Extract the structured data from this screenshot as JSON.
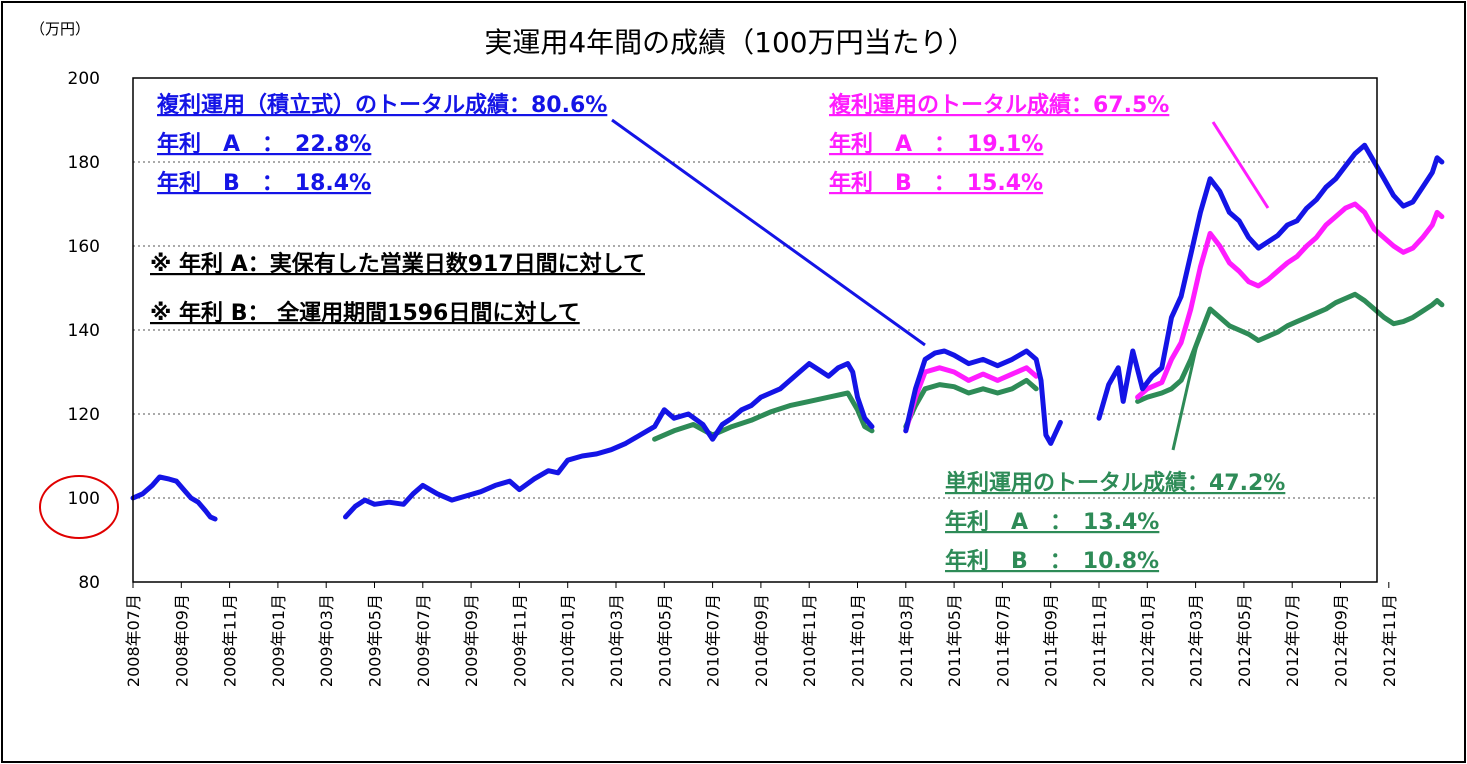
{
  "chart_data": {
    "type": "line",
    "title": "実運用4年間の成績（100万円当たり）",
    "y_unit_label": "（万円）",
    "ylim": [
      80,
      200
    ],
    "yticks": [
      80,
      100,
      120,
      140,
      160,
      180,
      200
    ],
    "x_tick_labels": [
      "2008年07月",
      "2008年09月",
      "2008年11月",
      "2009年01月",
      "2009年03月",
      "2009年05月",
      "2009年07月",
      "2009年09月",
      "2009年11月",
      "2010年01月",
      "2010年03月",
      "2010年05月",
      "2010年07月",
      "2010年09月",
      "2010年11月",
      "2011年01月",
      "2011年03月",
      "2011年05月",
      "2011年07月",
      "2011年09月",
      "2011年11月",
      "2012年01月",
      "2012年03月",
      "2012年05月",
      "2012年07月",
      "2012年09月",
      "2012年11月"
    ],
    "grid": "horizontal-dotted",
    "highlight_tick": 100,
    "series": [
      {
        "name": "複利運用（積立式）",
        "color": "#1414e6",
        "points": [
          [
            0,
            100
          ],
          [
            0.2,
            101
          ],
          [
            0.4,
            103
          ],
          [
            0.55,
            105
          ],
          [
            0.75,
            104.5
          ],
          [
            0.9,
            104
          ],
          [
            1.05,
            102
          ],
          [
            1.2,
            100
          ],
          [
            1.35,
            99
          ],
          [
            1.5,
            97
          ],
          [
            1.6,
            95.5
          ],
          [
            1.7,
            95
          ],
          null,
          [
            4.4,
            95.5
          ],
          [
            4.6,
            98
          ],
          [
            4.8,
            99.5
          ],
          [
            5.0,
            98.5
          ],
          [
            5.3,
            99
          ],
          [
            5.6,
            98.5
          ],
          [
            5.8,
            101
          ],
          [
            6.0,
            103
          ],
          [
            6.3,
            101
          ],
          [
            6.6,
            99.5
          ],
          [
            6.9,
            100.5
          ],
          [
            7.2,
            101.5
          ],
          [
            7.5,
            103
          ],
          [
            7.8,
            104
          ],
          [
            8.0,
            102
          ],
          [
            8.3,
            104.5
          ],
          [
            8.6,
            106.5
          ],
          [
            8.8,
            106
          ],
          [
            9.0,
            109
          ],
          [
            9.3,
            110
          ],
          [
            9.6,
            110.5
          ],
          [
            9.9,
            111.5
          ],
          [
            10.2,
            113
          ],
          [
            10.5,
            115
          ],
          [
            10.8,
            117
          ],
          [
            11.0,
            121
          ],
          [
            11.2,
            119
          ],
          [
            11.5,
            120
          ],
          [
            11.8,
            117.5
          ],
          [
            12.0,
            114
          ],
          [
            12.2,
            117.5
          ],
          [
            12.4,
            119
          ],
          [
            12.6,
            121
          ],
          [
            12.8,
            122
          ],
          [
            13.0,
            124
          ],
          [
            13.2,
            125
          ],
          [
            13.4,
            126
          ],
          [
            13.6,
            128
          ],
          [
            13.8,
            130
          ],
          [
            14.0,
            132
          ],
          [
            14.2,
            130.5
          ],
          [
            14.4,
            129
          ],
          [
            14.6,
            131
          ],
          [
            14.8,
            132
          ],
          [
            14.9,
            130
          ],
          [
            15.0,
            124
          ],
          [
            15.15,
            119
          ],
          [
            15.3,
            117
          ],
          null,
          [
            16.0,
            116
          ],
          [
            16.2,
            126
          ],
          [
            16.4,
            133
          ],
          [
            16.6,
            134.5
          ],
          [
            16.8,
            135
          ],
          [
            17.0,
            134
          ],
          [
            17.3,
            132
          ],
          [
            17.6,
            133
          ],
          [
            17.9,
            131.5
          ],
          [
            18.2,
            133
          ],
          [
            18.5,
            135
          ],
          [
            18.7,
            133
          ],
          [
            18.8,
            128
          ],
          [
            18.9,
            115
          ],
          [
            19.0,
            113
          ],
          [
            19.2,
            118
          ],
          null,
          [
            20.0,
            119
          ],
          [
            20.2,
            127
          ],
          [
            20.4,
            131
          ],
          [
            20.5,
            123
          ],
          [
            20.7,
            135
          ],
          [
            20.9,
            126
          ],
          [
            21.1,
            129
          ],
          [
            21.3,
            131
          ],
          [
            21.5,
            143
          ],
          [
            21.7,
            148
          ],
          [
            21.9,
            158
          ],
          [
            22.1,
            168
          ],
          [
            22.3,
            176
          ],
          [
            22.5,
            173
          ],
          [
            22.7,
            168
          ],
          [
            22.9,
            166
          ],
          [
            23.1,
            162
          ],
          [
            23.3,
            159.5
          ],
          [
            23.5,
            161
          ],
          [
            23.7,
            162.5
          ],
          [
            23.9,
            165
          ],
          [
            24.1,
            166
          ],
          [
            24.3,
            169
          ],
          [
            24.5,
            171
          ],
          [
            24.7,
            174
          ],
          [
            24.9,
            176
          ],
          [
            25.1,
            179
          ],
          [
            25.3,
            182
          ],
          [
            25.5,
            184
          ],
          [
            25.7,
            180
          ],
          [
            25.9,
            176
          ],
          [
            26.1,
            172
          ],
          [
            26.3,
            169.5
          ],
          [
            26.5,
            170.5
          ],
          [
            26.7,
            174
          ],
          [
            26.9,
            177.5
          ],
          [
            27.0,
            181
          ],
          [
            27.1,
            180
          ]
        ]
      },
      {
        "name": "複利運用",
        "color": "#ff1cff",
        "points": [
          [
            16.0,
            116
          ],
          [
            16.2,
            124
          ],
          [
            16.4,
            130
          ],
          [
            16.7,
            131
          ],
          [
            17.0,
            130
          ],
          [
            17.3,
            128
          ],
          [
            17.6,
            129.5
          ],
          [
            17.9,
            128
          ],
          [
            18.2,
            129.5
          ],
          [
            18.5,
            131
          ],
          [
            18.7,
            129
          ],
          null,
          [
            20.8,
            124
          ],
          [
            21.0,
            126
          ],
          [
            21.3,
            127.5
          ],
          [
            21.5,
            133
          ],
          [
            21.7,
            137
          ],
          [
            21.9,
            145
          ],
          [
            22.1,
            155
          ],
          [
            22.3,
            163
          ],
          [
            22.5,
            160
          ],
          [
            22.7,
            156
          ],
          [
            22.9,
            154
          ],
          [
            23.1,
            151.5
          ],
          [
            23.3,
            150.5
          ],
          [
            23.5,
            152
          ],
          [
            23.7,
            154
          ],
          [
            23.9,
            156
          ],
          [
            24.1,
            157.5
          ],
          [
            24.3,
            160
          ],
          [
            24.5,
            162
          ],
          [
            24.7,
            165
          ],
          [
            24.9,
            167
          ],
          [
            25.1,
            169
          ],
          [
            25.3,
            170
          ],
          [
            25.5,
            168
          ],
          [
            25.7,
            164
          ],
          [
            25.9,
            162
          ],
          [
            26.1,
            160
          ],
          [
            26.3,
            158.5
          ],
          [
            26.5,
            159.5
          ],
          [
            26.7,
            162
          ],
          [
            26.9,
            165
          ],
          [
            27.0,
            168
          ],
          [
            27.1,
            167
          ]
        ]
      },
      {
        "name": "単利運用",
        "color": "#2e8b57",
        "points": [
          [
            10.8,
            114
          ],
          [
            11.2,
            116
          ],
          [
            11.6,
            117.5
          ],
          [
            12.0,
            115
          ],
          [
            12.4,
            117
          ],
          [
            12.8,
            118.5
          ],
          [
            13.2,
            120.5
          ],
          [
            13.6,
            122
          ],
          [
            14.0,
            123
          ],
          [
            14.4,
            124
          ],
          [
            14.8,
            125
          ],
          [
            15.0,
            121
          ],
          [
            15.15,
            117
          ],
          [
            15.3,
            116
          ],
          null,
          [
            16.0,
            117
          ],
          [
            16.2,
            122
          ],
          [
            16.4,
            126
          ],
          [
            16.7,
            127
          ],
          [
            17.0,
            126.5
          ],
          [
            17.3,
            125
          ],
          [
            17.6,
            126
          ],
          [
            17.9,
            125
          ],
          [
            18.2,
            126
          ],
          [
            18.5,
            128
          ],
          [
            18.7,
            126
          ],
          null,
          [
            20.8,
            123
          ],
          [
            21.0,
            124
          ],
          [
            21.3,
            125
          ],
          [
            21.5,
            126
          ],
          [
            21.7,
            128
          ],
          [
            21.9,
            133
          ],
          [
            22.1,
            139
          ],
          [
            22.3,
            145
          ],
          [
            22.5,
            143
          ],
          [
            22.7,
            141
          ],
          [
            22.9,
            140
          ],
          [
            23.1,
            139
          ],
          [
            23.3,
            137.5
          ],
          [
            23.5,
            138.5
          ],
          [
            23.7,
            139.5
          ],
          [
            23.9,
            141
          ],
          [
            24.1,
            142
          ],
          [
            24.3,
            143
          ],
          [
            24.5,
            144
          ],
          [
            24.7,
            145
          ],
          [
            24.9,
            146.5
          ],
          [
            25.1,
            147.5
          ],
          [
            25.3,
            148.5
          ],
          [
            25.5,
            147
          ],
          [
            25.7,
            145
          ],
          [
            25.9,
            143
          ],
          [
            26.1,
            141.5
          ],
          [
            26.3,
            142
          ],
          [
            26.5,
            143
          ],
          [
            26.7,
            144.5
          ],
          [
            26.9,
            146
          ],
          [
            27.0,
            147
          ],
          [
            27.1,
            146
          ]
        ]
      }
    ],
    "annotations": {
      "compound_accum": {
        "color": "#1414e6",
        "lines": [
          "複利運用（積立式）のトータル成績：80.6%",
          "年利　A　：　22.8%",
          "年利　B　：　18.4%"
        ]
      },
      "compound": {
        "color": "#ff1cff",
        "lines": [
          "複利運用のトータル成績：67.5%",
          "年利　A　：　19.1%",
          "年利　B　：　15.4%"
        ]
      },
      "simple": {
        "color": "#2e8b57",
        "lines": [
          "単利運用のトータル成績：47.2%",
          "年利　A　：　13.4%",
          "年利　B　：　10.8%"
        ]
      },
      "notes": {
        "color": "#000000",
        "lines": [
          "※ 年利 A：実保有した営業日数917日間に対して",
          "※ 年利 B： 全運用期間1596日間に対して"
        ]
      }
    }
  }
}
